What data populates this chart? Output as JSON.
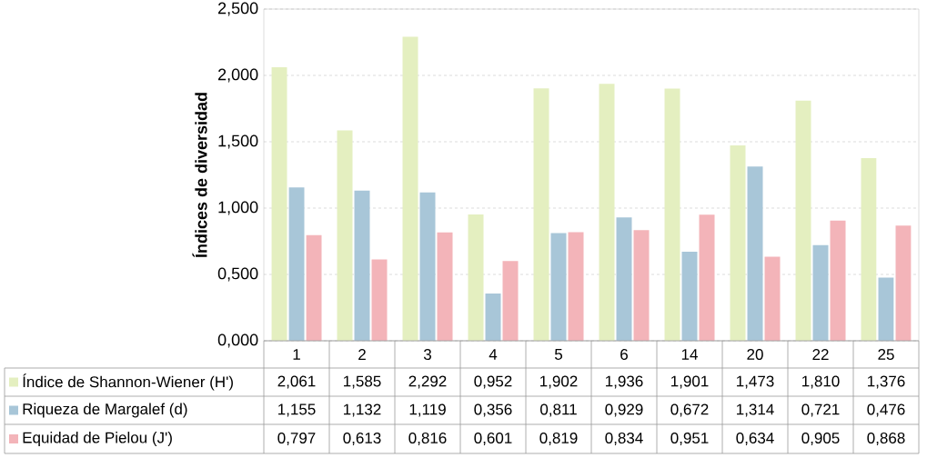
{
  "chart_data": {
    "type": "bar",
    "ylabel": "Índices de diversidad",
    "categories": [
      "1",
      "2",
      "3",
      "4",
      "5",
      "6",
      "14",
      "20",
      "22",
      "25"
    ],
    "series": [
      {
        "name": "Índice de Shannon-Wiener (H')",
        "color": "#e4efc0",
        "values": [
          2.061,
          1.585,
          2.292,
          0.952,
          1.902,
          1.936,
          1.901,
          1.473,
          1.81,
          1.376
        ],
        "value_labels": [
          "2,061",
          "1,585",
          "2,292",
          "0,952",
          "1,902",
          "1,936",
          "1,901",
          "1,473",
          "1,810",
          "1,376"
        ]
      },
      {
        "name": "Riqueza de Margalef (d)",
        "color": "#a8c6d8",
        "values": [
          1.155,
          1.132,
          1.119,
          0.356,
          0.811,
          0.929,
          0.672,
          1.314,
          0.721,
          0.476
        ],
        "value_labels": [
          "1,155",
          "1,132",
          "1,119",
          "0,356",
          "0,811",
          "0,929",
          "0,672",
          "1,314",
          "0,721",
          "0,476"
        ]
      },
      {
        "name": "Equidad de Pielou (J')",
        "color": "#f3b4b9",
        "values": [
          0.797,
          0.613,
          0.816,
          0.601,
          0.819,
          0.834,
          0.951,
          0.634,
          0.905,
          0.868
        ],
        "value_labels": [
          "0,797",
          "0,613",
          "0,816",
          "0,601",
          "0,819",
          "0,834",
          "0,951",
          "0,634",
          "0,905",
          "0,868"
        ]
      }
    ],
    "ylim": [
      0,
      2.5
    ],
    "yticks": [
      {
        "value": 0,
        "label": "0,000"
      },
      {
        "value": 0.5,
        "label": "0,500"
      },
      {
        "value": 1,
        "label": "1,000"
      },
      {
        "value": 1.5,
        "label": "1,500"
      },
      {
        "value": 2,
        "label": "2,000"
      },
      {
        "value": 2.5,
        "label": "2,500"
      }
    ],
    "grid": true,
    "legend": "bottom"
  }
}
